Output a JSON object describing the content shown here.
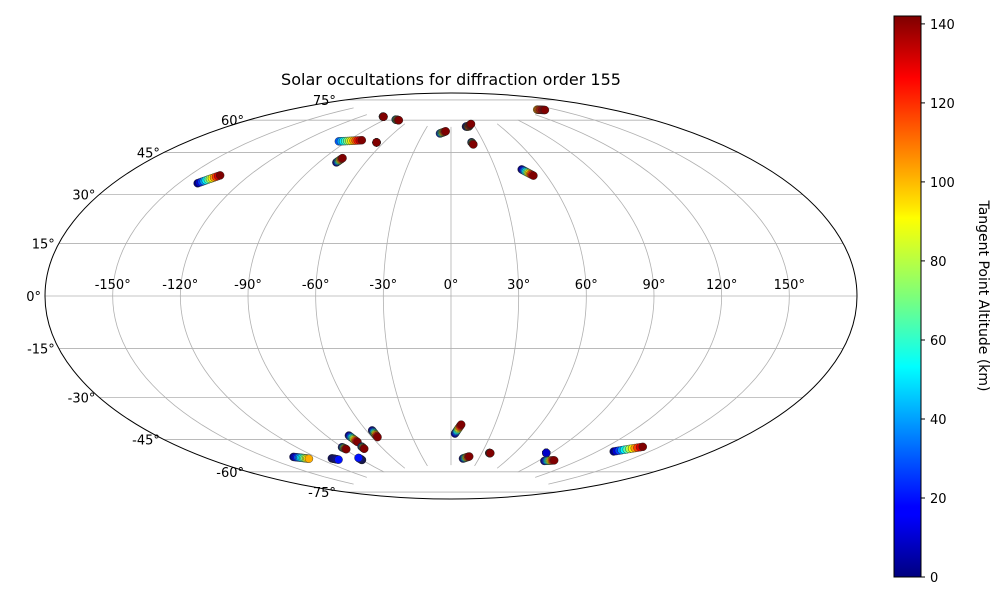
{
  "chart_data": {
    "type": "scatter",
    "projection": "aitoff",
    "title": "Solar occultations for diffraction order 155",
    "xlabel": "",
    "ylabel": "",
    "x_ticks": [
      "-150°",
      "-120°",
      "-90°",
      "-60°",
      "-30°",
      "0°",
      "30°",
      "60°",
      "90°",
      "120°",
      "150°"
    ],
    "x_tick_values": [
      -150,
      -120,
      -90,
      -60,
      -30,
      0,
      30,
      60,
      90,
      120,
      150
    ],
    "y_ticks": [
      "75°",
      "60°",
      "45°",
      "30°",
      "15°",
      "0°",
      "-15°",
      "-30°",
      "-45°",
      "-60°",
      "-75°"
    ],
    "y_tick_values": [
      75,
      60,
      45,
      30,
      15,
      0,
      -15,
      -30,
      -45,
      -60,
      -75
    ],
    "xlim": [
      -180,
      180
    ],
    "ylim": [
      -90,
      90
    ],
    "grid": true,
    "colorbar": {
      "label": "Tangent Point Altitude (km)",
      "colormap": "jet",
      "range": [
        0,
        142
      ],
      "ticks": [
        "0",
        "20",
        "40",
        "60",
        "80",
        "100",
        "120",
        "140"
      ],
      "tick_values": [
        0,
        20,
        40,
        60,
        80,
        100,
        120,
        140
      ]
    },
    "tracks": [
      {
        "lon_start": -141,
        "lat_start": 40,
        "lon_end": -135,
        "lat_end": 44,
        "alt_min": 0,
        "alt_max": 142
      },
      {
        "lon_start": -96,
        "lat_start": 64,
        "lon_end": -80,
        "lat_end": 66,
        "alt_min": 30,
        "alt_max": 142
      },
      {
        "lon_start": -99,
        "lat_start": 76,
        "lon_end": -98,
        "lat_end": 76,
        "alt_min": 130,
        "alt_max": 142
      },
      {
        "lon_start": -78,
        "lat_start": 76,
        "lon_end": -73,
        "lat_end": 76,
        "alt_min": 30,
        "alt_max": 142
      },
      {
        "lon_start": -79,
        "lat_start": 56,
        "lon_end": -78,
        "lat_end": 58,
        "alt_min": 0,
        "alt_max": 142
      },
      {
        "lon_start": -66,
        "lat_start": 66,
        "lon_end": -66,
        "lat_end": 66,
        "alt_min": 130,
        "alt_max": 142
      },
      {
        "lon_start": -12,
        "lat_start": 72,
        "lon_end": -6,
        "lat_end": 73,
        "alt_min": 20,
        "alt_max": 142
      },
      {
        "lon_start": 19,
        "lat_start": 75,
        "lon_end": 23,
        "lat_end": 75,
        "alt_min": 0,
        "alt_max": 60
      },
      {
        "lon_start": 22,
        "lat_start": 75,
        "lon_end": 27,
        "lat_end": 76,
        "alt_min": 100,
        "alt_max": 142
      },
      {
        "lon_start": 19,
        "lat_start": 68,
        "lon_end": 20,
        "lat_end": 67,
        "alt_min": 0,
        "alt_max": 142
      },
      {
        "lon_start": 47,
        "lat_start": 55,
        "lon_end": 52,
        "lat_end": 52,
        "alt_min": 0,
        "alt_max": 142
      },
      {
        "lon_start": 136,
        "lat_start": 76,
        "lon_end": 141,
        "lat_end": 75,
        "alt_min": 100,
        "alt_max": 142
      },
      {
        "lon_start": -134,
        "lat_start": -62,
        "lon_end": -127,
        "lat_end": -64,
        "alt_min": 0,
        "alt_max": 100
      },
      {
        "lon_start": -111,
        "lat_start": -66,
        "lon_end": -108,
        "lat_end": -67,
        "alt_min": 0,
        "alt_max": 20
      },
      {
        "lon_start": -90,
        "lat_start": -63,
        "lon_end": -89,
        "lat_end": -64,
        "alt_min": 0,
        "alt_max": 142
      },
      {
        "lon_start": -90,
        "lat_start": -69,
        "lon_end": -90,
        "lat_end": -68,
        "alt_min": 0,
        "alt_max": 20
      },
      {
        "lon_start": -75,
        "lat_start": -59,
        "lon_end": -74,
        "lat_end": -62,
        "alt_min": 0,
        "alt_max": 142
      },
      {
        "lon_start": -75,
        "lat_start": -64,
        "lon_end": -75,
        "lat_end": -65,
        "alt_min": 0,
        "alt_max": 142
      },
      {
        "lon_start": -56,
        "lat_start": -58,
        "lon_end": -56,
        "lat_end": -61,
        "alt_min": 0,
        "alt_max": 142
      },
      {
        "lon_start": 3,
        "lat_start": -61,
        "lon_end": 7,
        "lat_end": -57,
        "alt_min": 0,
        "alt_max": 142
      },
      {
        "lon_start": 13,
        "lat_start": -72,
        "lon_end": 19,
        "lat_end": -71,
        "alt_min": 0,
        "alt_max": 142
      },
      {
        "lon_start": 37,
        "lat_start": -69,
        "lon_end": 38,
        "lat_end": -69,
        "alt_min": 0,
        "alt_max": 142
      },
      {
        "lon_start": 86,
        "lat_start": -66,
        "lon_end": 86,
        "lat_end": -66,
        "alt_min": 0,
        "alt_max": 10
      },
      {
        "lon_start": 95,
        "lat_start": -69,
        "lon_end": 102,
        "lat_end": -68,
        "alt_min": 0,
        "alt_max": 142
      },
      {
        "lon_start": 130,
        "lat_start": -60,
        "lon_end": 141,
        "lat_end": -56,
        "alt_min": 0,
        "alt_max": 142
      }
    ]
  }
}
